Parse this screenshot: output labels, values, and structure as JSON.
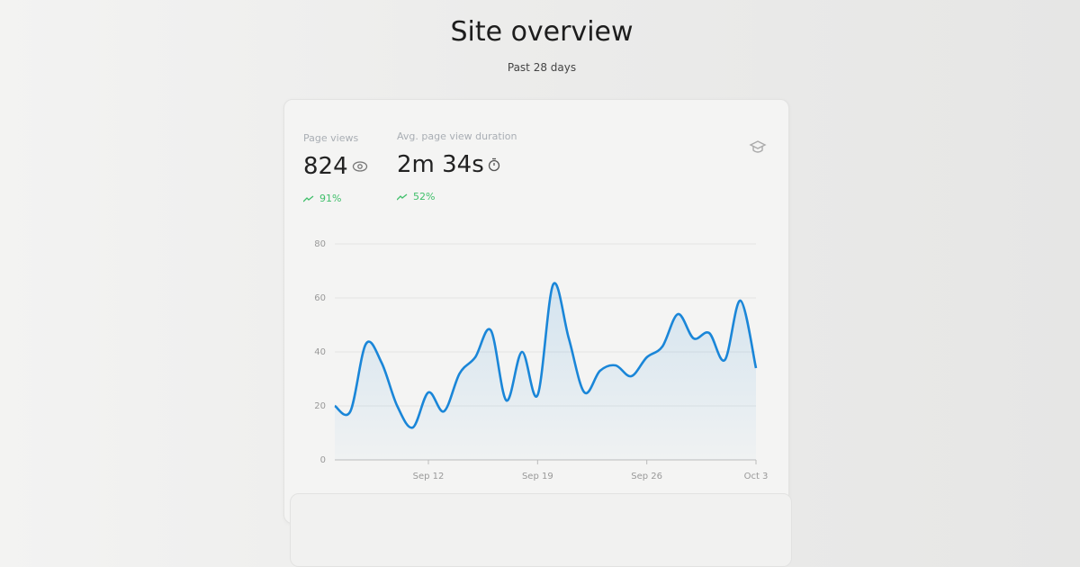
{
  "header": {
    "title": "Site overview",
    "subtitle": "Past 28 days"
  },
  "stats": [
    {
      "label": "Page views",
      "value": "824",
      "change": "91%"
    },
    {
      "label": "Avg. page view duration",
      "value": "2m 34s",
      "change": "52%"
    }
  ],
  "chart_data": {
    "type": "line",
    "categories": [
      null,
      null,
      null,
      null,
      null,
      null,
      "Sep 12",
      null,
      null,
      null,
      null,
      null,
      null,
      "Sep 19",
      null,
      null,
      null,
      null,
      null,
      null,
      "Sep 26",
      null,
      null,
      null,
      null,
      null,
      null,
      "Oct 3"
    ],
    "values": [
      20,
      18,
      43,
      36,
      20,
      12,
      25,
      18,
      32,
      38,
      48,
      22,
      40,
      24,
      65,
      45,
      25,
      33,
      35,
      31,
      38,
      42,
      54,
      45,
      47,
      37,
      59,
      34
    ],
    "color": "#1a86d8",
    "ylim": [
      0,
      80
    ],
    "yticks": [
      0,
      20,
      40,
      60,
      80
    ],
    "grid": true
  }
}
